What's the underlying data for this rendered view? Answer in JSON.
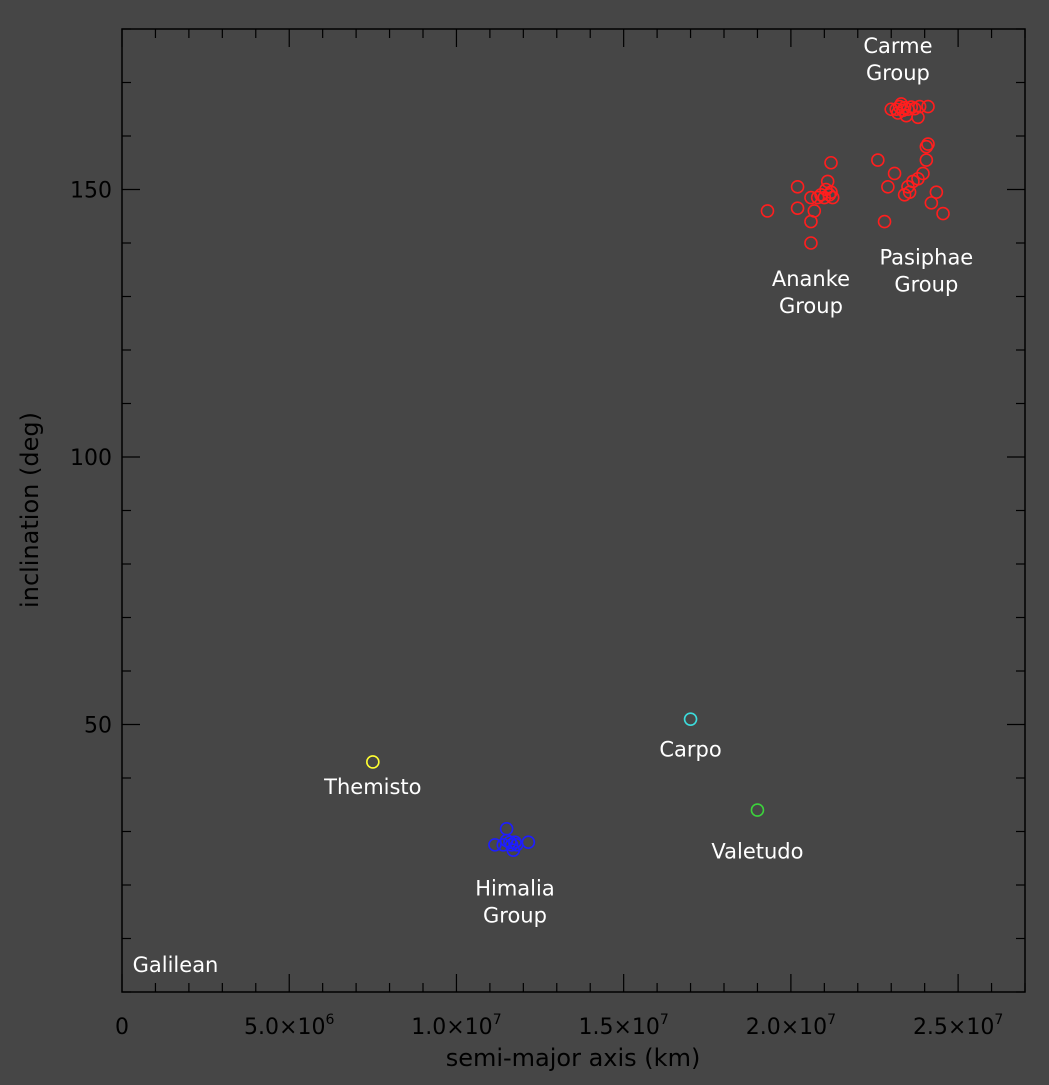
{
  "colors": {
    "background": "#464646",
    "axes": "#000000",
    "axis_text": "#000000",
    "label_text": "#ffffff",
    "red": "#ff1e1e",
    "blue": "#1e1eff",
    "yellow": "#ffff32",
    "cyan": "#3cdcdc",
    "green": "#3cd23c"
  },
  "chart_data": {
    "type": "scatter",
    "xlabel": "semi-major axis (km)",
    "ylabel": "inclination (deg)",
    "xlim": [
      0,
      27000000
    ],
    "ylim": [
      0,
      180
    ],
    "x_ticks": [
      {
        "value": 0,
        "mantissa": "0",
        "exponent": ""
      },
      {
        "value": 5000000,
        "mantissa": "5.0×10",
        "exponent": "6"
      },
      {
        "value": 10000000,
        "mantissa": "1.0×10",
        "exponent": "7"
      },
      {
        "value": 15000000,
        "mantissa": "1.5×10",
        "exponent": "7"
      },
      {
        "value": 20000000,
        "mantissa": "2.0×10",
        "exponent": "7"
      },
      {
        "value": 25000000,
        "mantissa": "2.5×10",
        "exponent": "7"
      }
    ],
    "y_ticks": [
      50,
      100,
      150
    ],
    "x_minor_step": 1000000,
    "y_minor_step": 10,
    "grid": false,
    "marker": "open-circle",
    "series": [
      {
        "color": "#ff1e1e",
        "points": [
          [
            23000000,
            165
          ],
          [
            23150000,
            165
          ],
          [
            23250000,
            165.5
          ],
          [
            23300000,
            166
          ],
          [
            23400000,
            165.3
          ],
          [
            23500000,
            165
          ],
          [
            23600000,
            165.4
          ],
          [
            23200000,
            164.3
          ],
          [
            23350000,
            164.8
          ],
          [
            23700000,
            165.1
          ],
          [
            23850000,
            165.5
          ],
          [
            24100000,
            165.5
          ],
          [
            23450000,
            163.8
          ],
          [
            23800000,
            163.5
          ],
          [
            22600000,
            155.5
          ],
          [
            23100000,
            153
          ],
          [
            23500000,
            150.5
          ],
          [
            23650000,
            151.5
          ],
          [
            23800000,
            152
          ],
          [
            23950000,
            153
          ],
          [
            24050000,
            155.5
          ],
          [
            24100000,
            158.5
          ],
          [
            24050000,
            158
          ],
          [
            22900000,
            150.5
          ],
          [
            23400000,
            149
          ],
          [
            23550000,
            149.5
          ],
          [
            24200000,
            147.5
          ],
          [
            24350000,
            149.5
          ],
          [
            24550000,
            145.5
          ],
          [
            22800000,
            144
          ],
          [
            19300000,
            146
          ],
          [
            20200000,
            150.5
          ],
          [
            20200000,
            146.5
          ],
          [
            20600000,
            148.5
          ],
          [
            20700000,
            146
          ],
          [
            20800000,
            148.5
          ],
          [
            20900000,
            149
          ],
          [
            21050000,
            150
          ],
          [
            21100000,
            151.5
          ],
          [
            21200000,
            155
          ],
          [
            21000000,
            148.5
          ],
          [
            21150000,
            149
          ],
          [
            21250000,
            148.5
          ],
          [
            21200000,
            149.5
          ],
          [
            20600000,
            144
          ],
          [
            20600000,
            140
          ]
        ]
      },
      {
        "color": "#1e1eff",
        "points": [
          [
            11150000,
            27.5
          ],
          [
            11400000,
            27.5
          ],
          [
            11500000,
            28.3
          ],
          [
            11500000,
            30.5
          ],
          [
            11600000,
            28
          ],
          [
            11650000,
            27.5
          ],
          [
            11700000,
            26.5
          ],
          [
            11750000,
            28
          ],
          [
            11800000,
            27.5
          ],
          [
            12150000,
            28
          ]
        ]
      },
      {
        "color": "#ffff32",
        "points": [
          [
            7500000,
            43
          ]
        ]
      },
      {
        "color": "#3cdcdc",
        "points": [
          [
            17000000,
            51
          ]
        ]
      },
      {
        "color": "#3cd23c",
        "points": [
          [
            19000000,
            34
          ]
        ]
      }
    ],
    "annotations": [
      {
        "lines": [
          "Carme",
          "Group"
        ],
        "x": 23200000,
        "y": 175.5
      },
      {
        "lines": [
          "Pasiphae",
          "Group"
        ],
        "x": 24050000,
        "y": 136
      },
      {
        "lines": [
          "Ananke",
          "Group"
        ],
        "x": 20600000,
        "y": 132
      },
      {
        "lines": [
          "Carpo"
        ],
        "x": 17000000,
        "y": 44
      },
      {
        "lines": [
          "Themisto"
        ],
        "x": 7500000,
        "y": 37
      },
      {
        "lines": [
          "Valetudo"
        ],
        "x": 19000000,
        "y": 25
      },
      {
        "lines": [
          "Himalia",
          "Group"
        ],
        "x": 11750000,
        "y": 18
      },
      {
        "lines": [
          "Galilean"
        ],
        "x": 1600000,
        "y": 3.7
      }
    ]
  }
}
